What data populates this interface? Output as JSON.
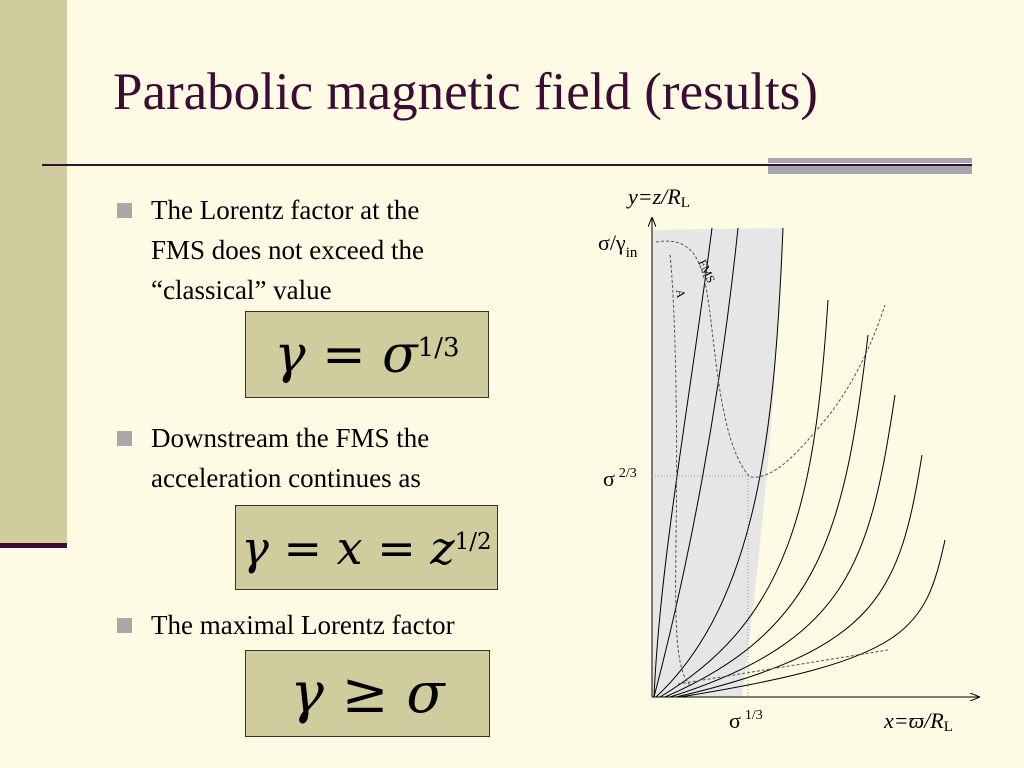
{
  "slide": {
    "title": "Parabolic magnetic field (results)",
    "bullets": [
      {
        "text": "The Lorentz factor at the\nFMS does not exceed the\n“classical” value"
      },
      {
        "text": "Downstream the FMS the\nacceleration continues as"
      },
      {
        "text": "The maximal Lorentz factor"
      }
    ],
    "formulas": [
      {
        "main": "γ = σ",
        "exp": "1/3"
      },
      {
        "main": "γ = x = z",
        "exp": "1/2"
      },
      {
        "main": "γ ≥ σ",
        "exp": ""
      }
    ]
  },
  "diagram": {
    "y_label_var": "y=z/R",
    "y_label_sub": "L",
    "x_label_var": "x=ϖ/R",
    "x_label_sub": "L",
    "sigma_gamma_base": "σ/γ",
    "sigma_gamma_sub": "in",
    "sigma_two_thirds_base": "σ",
    "sigma_two_thirds_exp": "2/3",
    "sigma_one_third_base": "σ",
    "sigma_one_third_exp": "1/3",
    "fms_label": "FMS",
    "a_label": "A"
  }
}
